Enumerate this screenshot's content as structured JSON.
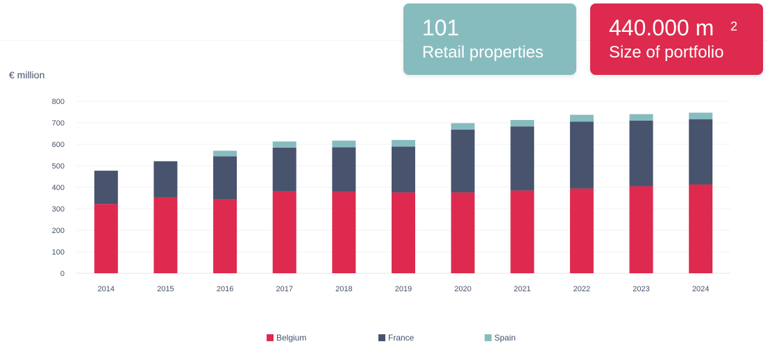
{
  "cards": {
    "retail": {
      "value": "101",
      "label": "Retail properties",
      "color": "#87bcbf"
    },
    "size": {
      "value": "440.000 m",
      "superscript": "2",
      "label": "Size of portfolio",
      "color": "#dd2a4e"
    }
  },
  "chart_data": {
    "type": "bar",
    "stacked": true,
    "title": "",
    "xlabel": "",
    "ylabel": "€ million",
    "ylim": [
      0,
      800
    ],
    "yticks": [
      0,
      100,
      200,
      300,
      400,
      500,
      600,
      700,
      800
    ],
    "grid": true,
    "legend_position": "bottom",
    "categories": [
      "2014",
      "2015",
      "2016",
      "2017",
      "2018",
      "2019",
      "2020",
      "2021",
      "2022",
      "2023",
      "2024"
    ],
    "series": [
      {
        "name": "Belgium",
        "color": "#dd2a4e",
        "values": [
          322,
          353,
          345,
          381,
          378,
          376,
          376,
          385,
          394,
          405,
          413
        ]
      },
      {
        "name": "France",
        "color": "#48536e",
        "values": [
          155,
          168,
          199,
          203,
          208,
          213,
          292,
          298,
          311,
          305,
          303
        ]
      },
      {
        "name": "Spain",
        "color": "#87bcbf",
        "values": [
          0,
          0,
          26,
          29,
          31,
          31,
          30,
          30,
          32,
          30,
          31
        ]
      }
    ]
  }
}
